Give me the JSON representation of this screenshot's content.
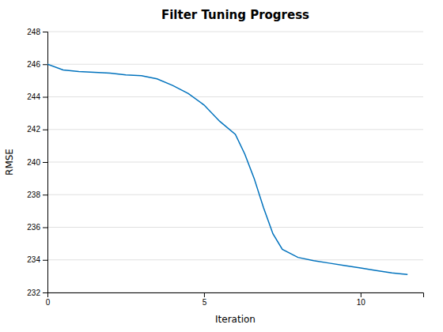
{
  "chart_data": {
    "type": "line",
    "title": "Filter Tuning Progress",
    "xlabel": "Iteration",
    "ylabel": "RMSE",
    "x": [
      0,
      0.5,
      1,
      1.5,
      2,
      2.5,
      3,
      3.5,
      4,
      4.5,
      5,
      5.5,
      6,
      6.3,
      6.6,
      6.9,
      7.2,
      7.5,
      8,
      8.5,
      9,
      9.5,
      10,
      10.5,
      11,
      11.5
    ],
    "values": [
      246.0,
      245.65,
      245.55,
      245.5,
      245.45,
      245.35,
      245.3,
      245.1,
      244.7,
      244.2,
      243.5,
      242.5,
      241.7,
      240.5,
      239.0,
      237.2,
      235.6,
      234.65,
      234.15,
      233.95,
      233.8,
      233.65,
      233.5,
      233.35,
      233.2,
      233.1
    ],
    "color": "#0072BD",
    "xlim": [
      0,
      12
    ],
    "ylim": [
      232,
      248
    ],
    "xticks": [
      0,
      5,
      10
    ],
    "yticks": [
      232,
      234,
      236,
      238,
      240,
      242,
      244,
      246,
      248
    ],
    "grid": "y"
  }
}
